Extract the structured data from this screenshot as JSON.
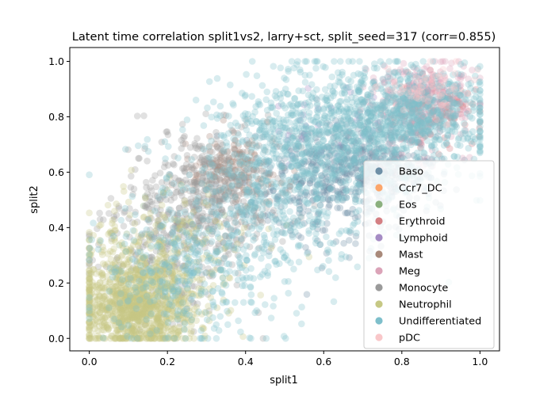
{
  "chart_data": {
    "type": "scatter",
    "title": "Latent time correlation split1vs2, larry+sct, split_seed=317 (corr=0.855)",
    "xlabel": "split1",
    "ylabel": "split2",
    "xlim": [
      -0.05,
      1.05
    ],
    "ylim": [
      -0.045,
      1.05
    ],
    "xticks": [
      0.0,
      0.2,
      0.4,
      0.6,
      0.8,
      1.0
    ],
    "yticks": [
      0.0,
      0.2,
      0.4,
      0.6,
      0.8,
      1.0
    ],
    "xtick_labels": [
      "0.0",
      "0.2",
      "0.4",
      "0.6",
      "0.8",
      "1.0"
    ],
    "ytick_labels": [
      "0.0",
      "0.2",
      "0.4",
      "0.6",
      "0.8",
      "1.0"
    ],
    "grid": false,
    "legend_position": "lower right",
    "marker_alpha": 0.3,
    "series": [
      {
        "name": "Baso",
        "color": "#6e8fa6",
        "clusters": [
          {
            "cx": 0.7,
            "cy": 0.62,
            "sx": 0.1,
            "sy": 0.09,
            "n": 420
          },
          {
            "cx": 0.58,
            "cy": 0.55,
            "sx": 0.12,
            "sy": 0.12,
            "n": 220
          }
        ]
      },
      {
        "name": "Ccr7_DC",
        "color": "#fca56a",
        "clusters": []
      },
      {
        "name": "Eos",
        "color": "#8bb07e",
        "clusters": [
          {
            "cx": 0.2,
            "cy": 0.35,
            "sx": 0.1,
            "sy": 0.12,
            "n": 35
          }
        ]
      },
      {
        "name": "Erythroid",
        "color": "#d47f83",
        "clusters": [
          {
            "cx": 0.88,
            "cy": 0.82,
            "sx": 0.05,
            "sy": 0.06,
            "n": 150
          }
        ]
      },
      {
        "name": "Lymphoid",
        "color": "#a58cc4",
        "clusters": [
          {
            "cx": 0.62,
            "cy": 0.78,
            "sx": 0.08,
            "sy": 0.06,
            "n": 30
          }
        ]
      },
      {
        "name": "Mast",
        "color": "#a8897a",
        "clusters": [
          {
            "cx": 0.36,
            "cy": 0.6,
            "sx": 0.06,
            "sy": 0.06,
            "n": 160
          }
        ]
      },
      {
        "name": "Meg",
        "color": "#dba3b8",
        "clusters": [
          {
            "cx": 0.86,
            "cy": 0.88,
            "sx": 0.07,
            "sy": 0.06,
            "n": 200
          },
          {
            "cx": 0.82,
            "cy": 0.72,
            "sx": 0.07,
            "sy": 0.07,
            "n": 60
          }
        ]
      },
      {
        "name": "Monocyte",
        "color": "#9a9a9a",
        "clusters": [
          {
            "cx": 0.33,
            "cy": 0.55,
            "sx": 0.08,
            "sy": 0.1,
            "n": 380
          },
          {
            "cx": 0.2,
            "cy": 0.35,
            "sx": 0.1,
            "sy": 0.13,
            "n": 300
          }
        ]
      },
      {
        "name": "Neutrophil",
        "color": "#c6c884",
        "clusters": [
          {
            "cx": 0.12,
            "cy": 0.12,
            "sx": 0.075,
            "sy": 0.085,
            "n": 1100
          },
          {
            "cx": 0.18,
            "cy": 0.3,
            "sx": 0.1,
            "sy": 0.12,
            "n": 250
          }
        ]
      },
      {
        "name": "Undifferentiated",
        "color": "#7ebfcb",
        "clusters": [
          {
            "cx": 0.62,
            "cy": 0.72,
            "sx": 0.15,
            "sy": 0.12,
            "n": 900
          },
          {
            "cx": 0.82,
            "cy": 0.82,
            "sx": 0.1,
            "sy": 0.08,
            "n": 600
          },
          {
            "cx": 0.45,
            "cy": 0.45,
            "sx": 0.14,
            "sy": 0.14,
            "n": 400
          },
          {
            "cx": 0.25,
            "cy": 0.22,
            "sx": 0.12,
            "sy": 0.12,
            "n": 300
          }
        ]
      },
      {
        "name": "pDC",
        "color": "#f9c7c9",
        "clusters": [
          {
            "cx": 0.86,
            "cy": 0.9,
            "sx": 0.06,
            "sy": 0.05,
            "n": 60
          }
        ]
      }
    ]
  }
}
